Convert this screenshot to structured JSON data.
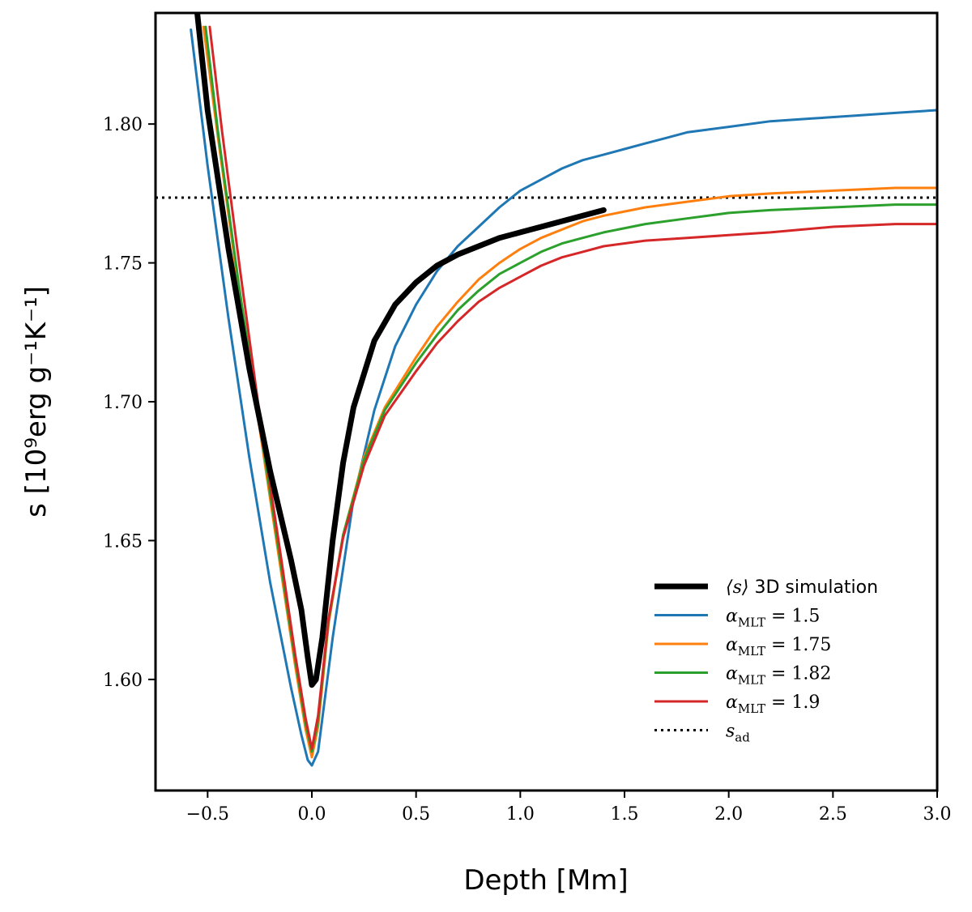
{
  "chart_data": {
    "type": "line",
    "title": "",
    "xlabel": "Depth [Mm]",
    "ylabel": "s [10⁹erg g⁻¹K⁻¹]",
    "xlim": [
      -0.75,
      3.0
    ],
    "ylim": [
      1.56,
      1.84
    ],
    "xticks": [
      -0.5,
      0.0,
      0.5,
      1.0,
      1.5,
      2.0,
      2.5,
      3.0
    ],
    "xtick_labels": [
      "−0.5",
      "0.0",
      "0.5",
      "1.0",
      "1.5",
      "2.0",
      "2.5",
      "3.0"
    ],
    "yticks": [
      1.6,
      1.65,
      1.7,
      1.75,
      1.8
    ],
    "ytick_labels": [
      "1.60",
      "1.65",
      "1.70",
      "1.75",
      "1.80"
    ],
    "grid": false,
    "legend_position": "lower-right",
    "series": [
      {
        "name": "⟨s⟩ 3D simulation",
        "label_parts": {
          "math": "⟨s⟩",
          "text": " 3D simulation"
        },
        "color": "#000000",
        "width": 7,
        "x": [
          -0.55,
          -0.5,
          -0.4,
          -0.3,
          -0.2,
          -0.1,
          -0.05,
          -0.02,
          0.0,
          0.02,
          0.05,
          0.1,
          0.15,
          0.2,
          0.3,
          0.4,
          0.5,
          0.6,
          0.7,
          0.8,
          0.9,
          1.0,
          1.1,
          1.2,
          1.3,
          1.4
        ],
        "y": [
          1.84,
          1.805,
          1.755,
          1.712,
          1.675,
          1.643,
          1.625,
          1.608,
          1.598,
          1.6,
          1.615,
          1.65,
          1.678,
          1.698,
          1.722,
          1.735,
          1.743,
          1.749,
          1.753,
          1.756,
          1.759,
          1.761,
          1.763,
          1.765,
          1.767,
          1.769
        ]
      },
      {
        "name": "α_MLT = 1.5",
        "label_parts": {
          "math": "α",
          "sub": "MLT",
          "rest": " = 1.5"
        },
        "color": "#1f77b4",
        "width": 3,
        "x": [
          -0.58,
          -0.5,
          -0.4,
          -0.3,
          -0.2,
          -0.1,
          -0.05,
          -0.02,
          0.0,
          0.03,
          0.1,
          0.2,
          0.3,
          0.4,
          0.5,
          0.6,
          0.7,
          0.8,
          0.9,
          1.0,
          1.1,
          1.2,
          1.3,
          1.4,
          1.5,
          1.6,
          1.7,
          1.8,
          1.9,
          2.0,
          2.2,
          2.4,
          2.6,
          2.8,
          3.0
        ],
        "y": [
          1.834,
          1.785,
          1.73,
          1.68,
          1.635,
          1.597,
          1.58,
          1.571,
          1.569,
          1.574,
          1.615,
          1.665,
          1.697,
          1.72,
          1.735,
          1.747,
          1.756,
          1.763,
          1.77,
          1.776,
          1.78,
          1.784,
          1.787,
          1.789,
          1.791,
          1.793,
          1.795,
          1.797,
          1.798,
          1.799,
          1.801,
          1.802,
          1.803,
          1.804,
          1.805
        ]
      },
      {
        "name": "α_MLT = 1.75",
        "label_parts": {
          "math": "α",
          "sub": "MLT",
          "rest": " = 1.75"
        },
        "color": "#ff7f0e",
        "width": 3,
        "x": [
          -0.52,
          -0.45,
          -0.35,
          -0.25,
          -0.15,
          -0.08,
          -0.03,
          0.0,
          0.03,
          0.08,
          0.15,
          0.25,
          0.35,
          0.5,
          0.6,
          0.7,
          0.8,
          0.9,
          1.0,
          1.1,
          1.2,
          1.3,
          1.4,
          1.6,
          1.8,
          2.0,
          2.2,
          2.5,
          2.8,
          3.0
        ],
        "y": [
          1.835,
          1.795,
          1.74,
          1.69,
          1.64,
          1.605,
          1.582,
          1.572,
          1.583,
          1.62,
          1.652,
          1.68,
          1.698,
          1.716,
          1.727,
          1.736,
          1.744,
          1.75,
          1.755,
          1.759,
          1.762,
          1.765,
          1.767,
          1.77,
          1.772,
          1.774,
          1.775,
          1.776,
          1.777,
          1.777
        ]
      },
      {
        "name": "α_MLT = 1.82",
        "label_parts": {
          "math": "α",
          "sub": "MLT",
          "rest": " = 1.82"
        },
        "color": "#2ca02c",
        "width": 3,
        "x": [
          -0.51,
          -0.45,
          -0.35,
          -0.25,
          -0.15,
          -0.08,
          -0.03,
          0.0,
          0.03,
          0.08,
          0.15,
          0.25,
          0.35,
          0.5,
          0.6,
          0.7,
          0.8,
          0.9,
          1.0,
          1.1,
          1.2,
          1.3,
          1.4,
          1.6,
          1.8,
          2.0,
          2.2,
          2.5,
          2.8,
          3.0
        ],
        "y": [
          1.835,
          1.797,
          1.742,
          1.692,
          1.642,
          1.607,
          1.584,
          1.574,
          1.585,
          1.621,
          1.652,
          1.679,
          1.697,
          1.714,
          1.724,
          1.733,
          1.74,
          1.746,
          1.75,
          1.754,
          1.757,
          1.759,
          1.761,
          1.764,
          1.766,
          1.768,
          1.769,
          1.77,
          1.771,
          1.771
        ]
      },
      {
        "name": "α_MLT = 1.9",
        "label_parts": {
          "math": "α",
          "sub": "MLT",
          "rest": " = 1.9"
        },
        "color": "#d62728",
        "width": 3,
        "x": [
          -0.49,
          -0.43,
          -0.34,
          -0.25,
          -0.15,
          -0.08,
          -0.03,
          0.0,
          0.03,
          0.08,
          0.15,
          0.25,
          0.35,
          0.5,
          0.6,
          0.7,
          0.8,
          0.9,
          1.0,
          1.1,
          1.2,
          1.3,
          1.4,
          1.6,
          1.8,
          2.0,
          2.2,
          2.5,
          2.8,
          3.0
        ],
        "y": [
          1.835,
          1.797,
          1.745,
          1.695,
          1.645,
          1.609,
          1.586,
          1.575,
          1.587,
          1.622,
          1.651,
          1.677,
          1.695,
          1.711,
          1.721,
          1.729,
          1.736,
          1.741,
          1.745,
          1.749,
          1.752,
          1.754,
          1.756,
          1.758,
          1.759,
          1.76,
          1.761,
          1.763,
          1.764,
          1.764
        ]
      }
    ],
    "reference_line": {
      "name": "s_ad",
      "label_parts": {
        "math": "s",
        "sub": "ad"
      },
      "y": 1.7735,
      "color": "#000000",
      "style": "dotted"
    }
  }
}
